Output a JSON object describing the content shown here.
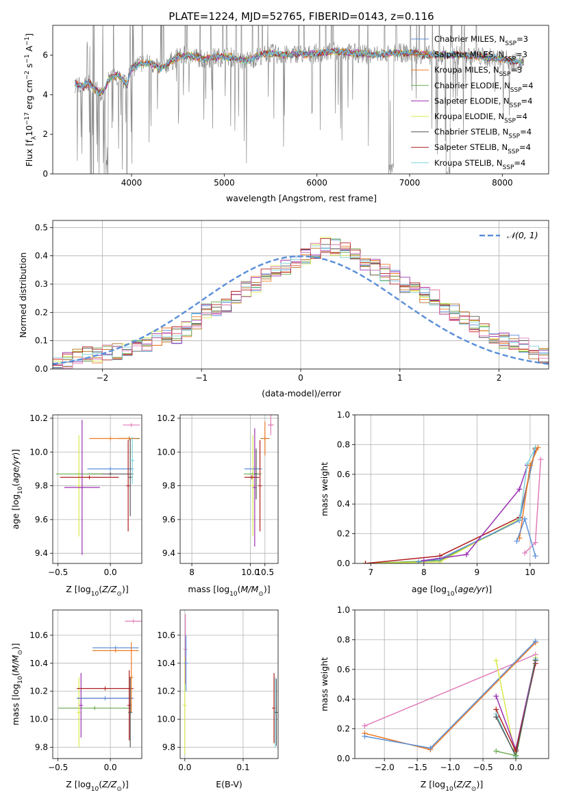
{
  "title": "PLATE=1224, MJD=52765, FIBERID=0143, z=0.116",
  "colors": {
    "Chabrier MILES": "#5b8fd9",
    "Salpeter MILES": "#b06a1a",
    "Kroupa MILES": "#ee7a23",
    "Chabrier ELODIE": "#6aa84f",
    "Salpeter ELODIE": "#9a2fb0",
    "Kroupa ELODIE": "#d8e84a",
    "Chabrier STELIB": "#555555",
    "Salpeter STELIB": "#b01c1c",
    "Kroupa STELIB": "#7fd4dc",
    "pink": "#e07cb8",
    "data": "#888888",
    "gaussian": "#5b8fd9"
  },
  "chart_data": [
    {
      "id": "spectrum",
      "type": "line",
      "title": "PLATE=1224, MJD=52765, FIBERID=0143, z=0.116",
      "xlabel": "wavelength [Angstrom, rest frame]",
      "ylabel": "Flux [f_λ 10^-17 erg cm^-2 s^-1 A^-1]",
      "xlim": [
        3150,
        8500
      ],
      "ylim": [
        0,
        7.5
      ],
      "xticks": [
        "4000",
        "5000",
        "6000",
        "7000",
        "8000"
      ],
      "yticks": [
        "0",
        "2",
        "4",
        "6"
      ],
      "grid": false,
      "legend_position": "right",
      "legend": [
        {
          "text": "Chabrier MILES, N_SSP=3",
          "series": "Chabrier MILES"
        },
        {
          "text": "Salpeter MILES, N_SSP=3",
          "series": "Salpeter MILES"
        },
        {
          "text": "Kroupa MILES, N_SSP=3",
          "series": "Kroupa MILES"
        },
        {
          "text": "Chabrier ELODIE, N_SSP=4",
          "series": "Chabrier ELODIE"
        },
        {
          "text": "Salpeter ELODIE, N_SSP=4",
          "series": "Salpeter ELODIE"
        },
        {
          "text": "Kroupa ELODIE, N_SSP=4",
          "series": "Kroupa ELODIE"
        },
        {
          "text": "Chabrier STELIB, N_SSP=4",
          "series": "Chabrier STELIB"
        },
        {
          "text": "Salpeter STELIB, N_SSP=4",
          "series": "Salpeter STELIB"
        },
        {
          "text": "Kroupa STELIB, N_SSP=4",
          "series": "Kroupa STELIB"
        }
      ],
      "continuum": {
        "x": [
          3380,
          3420,
          3480,
          3540,
          3600,
          3650,
          3700,
          3750,
          3800,
          3850,
          3900,
          3950,
          4000,
          4100,
          4200,
          4300,
          4400,
          4500,
          4600,
          4700,
          4800,
          4900,
          5000,
          5100,
          5200,
          5300,
          5400,
          5500,
          5600,
          5700,
          5800,
          5900,
          6000,
          6200,
          6400,
          6600,
          6800,
          7000,
          7200,
          7400,
          7600,
          7800,
          8000,
          8200
        ],
        "y": [
          4.6,
          4.5,
          4.4,
          4.6,
          4.3,
          4.1,
          4.2,
          4.7,
          4.9,
          5.0,
          4.8,
          4.5,
          5.3,
          5.6,
          5.6,
          5.3,
          5.6,
          5.9,
          6.0,
          5.9,
          5.8,
          5.9,
          5.9,
          5.9,
          5.7,
          5.8,
          6.0,
          6.1,
          6.0,
          6.0,
          6.1,
          6.0,
          6.1,
          6.2,
          6.1,
          6.0,
          6.1,
          6.1,
          6.0,
          6.0,
          6.0,
          5.9,
          5.8,
          5.6
        ]
      }
    },
    {
      "id": "residuals",
      "type": "step",
      "xlabel": "(data-model)/error",
      "ylabel": "Normed distribution",
      "xlim": [
        -2.5,
        2.5
      ],
      "ylim": [
        0,
        0.525
      ],
      "xticks": [
        "−2",
        "−1",
        "0",
        "1",
        "2"
      ],
      "yticks": [
        "0.0",
        "0.1",
        "0.2",
        "0.3",
        "0.4",
        "0.5"
      ],
      "grid": true,
      "legend_position": "top-right",
      "legend": [
        {
          "text": "𝒩(0, 1)",
          "series": "gaussian"
        }
      ],
      "bin_edges_from": -2.5,
      "bin_width": 0.1,
      "histogram_shape": [
        0.02,
        0.03,
        0.04,
        0.05,
        0.05,
        0.06,
        0.06,
        0.07,
        0.08,
        0.09,
        0.11,
        0.12,
        0.12,
        0.14,
        0.17,
        0.2,
        0.21,
        0.23,
        0.26,
        0.28,
        0.3,
        0.33,
        0.34,
        0.36,
        0.37,
        0.4,
        0.42,
        0.44,
        0.43,
        0.42,
        0.4,
        0.38,
        0.36,
        0.34,
        0.32,
        0.3,
        0.28,
        0.26,
        0.25,
        0.22,
        0.2,
        0.18,
        0.16,
        0.14,
        0.12,
        0.1,
        0.09,
        0.08,
        0.06,
        0.05
      ]
    },
    {
      "id": "age-vs-Z",
      "type": "errorbar",
      "xlabel": "Z [log10(Z/Z⊙)]",
      "ylabel": "age  [log10(age/yr)]",
      "xlim": [
        -0.55,
        0.3
      ],
      "ylim": [
        9.34,
        10.22
      ],
      "xticks": [
        "−0.5",
        "0.0"
      ],
      "yticks": [
        "9.4",
        "9.6",
        "9.8",
        "10.0",
        "10.2"
      ],
      "grid": true,
      "points": [
        {
          "series": "Chabrier MILES",
          "x": 0.0,
          "xerr": 0.22,
          "y": 9.9,
          "yerr": 0.0
        },
        {
          "series": "Chabrier STELIB",
          "x": 0.0,
          "xerr": 0.22,
          "y": 9.87,
          "yerr": 0.0
        },
        {
          "series": "Chabrier ELODIE",
          "x": -0.3,
          "xerr": 0.22,
          "y": 9.87,
          "yerr": 0.0
        },
        {
          "series": "Kroupa ELODIE",
          "x": -0.3,
          "xerr": 0.0,
          "y": 9.8,
          "yerr": 0.3
        },
        {
          "series": "Salpeter ELODIE",
          "x": -0.27,
          "xerr": 0.17,
          "y": 9.79,
          "yerr": 0.4
        },
        {
          "series": "Salpeter STELIB",
          "x": 0.17,
          "xerr": 0.0,
          "y": 9.8,
          "yerr": 0.27
        },
        {
          "series": "Chabrier STELIB",
          "x": 0.19,
          "xerr": 0.0,
          "y": 9.85,
          "yerr": 0.23
        },
        {
          "series": "Salpeter MILES",
          "x": 0.18,
          "xerr": 0.1,
          "y": 10.08,
          "yerr": 0.0
        },
        {
          "series": "Kroupa MILES",
          "x": 0.0,
          "xerr": 0.2,
          "y": 10.08,
          "yerr": 0.0
        },
        {
          "series": "pink",
          "x": 0.2,
          "xerr": 0.08,
          "y": 10.16,
          "yerr": 0.0
        },
        {
          "series": "Salpeter STELIB",
          "x": -0.2,
          "xerr": 0.28,
          "y": 9.85,
          "yerr": 0.0
        },
        {
          "series": "Kroupa STELIB",
          "x": 0.21,
          "xerr": 0.0,
          "y": 9.95,
          "yerr": 0.14
        }
      ]
    },
    {
      "id": "age-vs-mass",
      "type": "errorbar",
      "xlabel": "mass [log10(M/M⊙)]",
      "ylabel": "",
      "xlim": [
        7.6,
        10.95
      ],
      "ylim": [
        9.34,
        10.22
      ],
      "xticks": [
        "8",
        "10.0",
        "10.5"
      ],
      "yticks": [
        "9.4",
        "9.6",
        "9.8",
        "10.0",
        "10.2"
      ],
      "grid": true,
      "points": [
        {
          "series": "Chabrier MILES",
          "x": 10.1,
          "xerr": 0.3,
          "y": 9.9,
          "yerr": 0.0
        },
        {
          "series": "Chabrier ELODIE",
          "x": 10.08,
          "xerr": 0.3,
          "y": 9.87,
          "yerr": 0.0
        },
        {
          "series": "Kroupa ELODIE",
          "x": 10.09,
          "xerr": 0.0,
          "y": 9.8,
          "yerr": 0.3
        },
        {
          "series": "Salpeter ELODIE",
          "x": 10.15,
          "xerr": 0.0,
          "y": 9.79,
          "yerr": 0.35
        },
        {
          "series": "Salpeter STELIB",
          "x": 10.05,
          "xerr": 0.25,
          "y": 9.85,
          "yerr": 0.0
        },
        {
          "series": "Chabrier STELIB",
          "x": 10.2,
          "xerr": 0.0,
          "y": 9.87,
          "yerr": 0.15
        },
        {
          "series": "Salpeter STELIB",
          "x": 10.33,
          "xerr": 0.0,
          "y": 9.8,
          "yerr": 0.27
        },
        {
          "series": "Salpeter MILES",
          "x": 10.5,
          "xerr": 0.15,
          "y": 10.08,
          "yerr": 0.0
        },
        {
          "series": "Kroupa MILES",
          "x": 10.5,
          "xerr": 0.0,
          "y": 10.08,
          "yerr": 0.1
        },
        {
          "series": "pink",
          "x": 10.7,
          "xerr": 0.1,
          "y": 10.16,
          "yerr": 0.06
        }
      ]
    },
    {
      "id": "massweight-vs-age",
      "type": "line",
      "xlabel": "age  [log10(age/yr)]",
      "ylabel": "mass weight",
      "xlim": [
        6.7,
        10.35
      ],
      "ylim": [
        0,
        1.0
      ],
      "xticks": [
        "7",
        "8",
        "9",
        "10"
      ],
      "yticks": [
        "0.0",
        "0.2",
        "0.4",
        "0.6",
        "0.8",
        "1.0"
      ],
      "grid": true,
      "series": [
        {
          "series": "Chabrier ELODIE",
          "x": [
            6.9,
            8.3,
            9.8,
            10.1
          ],
          "y": [
            0.0,
            0.02,
            0.29,
            0.77
          ]
        },
        {
          "series": "Kroupa ELODIE",
          "x": [
            6.9,
            8.3,
            9.8,
            10.1
          ],
          "y": [
            0.0,
            0.01,
            0.3,
            0.78
          ]
        },
        {
          "series": "Salpeter STELIB",
          "x": [
            6.9,
            8.3,
            9.8,
            10.1
          ],
          "y": [
            0.0,
            0.05,
            0.31,
            0.77
          ]
        },
        {
          "series": "Chabrier MILES",
          "x": [
            7.9,
            8.3,
            9.8,
            10.1
          ],
          "y": [
            0.01,
            0.03,
            0.29,
            0.78
          ]
        },
        {
          "series": "Salpeter ELODIE",
          "x": [
            8.0,
            8.8,
            9.8,
            9.95
          ],
          "y": [
            0.02,
            0.06,
            0.5,
            0.66
          ]
        },
        {
          "series": "Kroupa STELIB",
          "x": [
            9.8,
            9.95,
            10.1
          ],
          "y": [
            0.3,
            0.67,
            0.78
          ]
        },
        {
          "series": "Kroupa MILES",
          "x": [
            9.8,
            10.0,
            10.15
          ],
          "y": [
            0.17,
            0.66,
            0.78
          ]
        },
        {
          "series": "pink",
          "x": [
            9.9,
            10.1,
            10.2
          ],
          "y": [
            0.07,
            0.14,
            0.7
          ]
        },
        {
          "series": "Chabrier MILES",
          "x": [
            9.75,
            9.9,
            10.1
          ],
          "y": [
            0.15,
            0.3,
            0.05
          ]
        }
      ]
    },
    {
      "id": "mass-vs-Z",
      "type": "errorbar",
      "xlabel": "Z [log10(Z/Z⊙)]",
      "ylabel": "mass [log10(M/M⊙)]",
      "xlim": [
        -0.55,
        0.3
      ],
      "ylim": [
        9.72,
        10.78
      ],
      "xticks": [
        "−0.5",
        "0.0"
      ],
      "yticks": [
        "9.8",
        "10.0",
        "10.2",
        "10.4",
        "10.6"
      ],
      "grid": true,
      "points": [
        {
          "series": "Chabrier ELODIE",
          "x": -0.15,
          "xerr": 0.35,
          "y": 10.08,
          "yerr": 0.0
        },
        {
          "series": "Kroupa ELODIE",
          "x": -0.3,
          "xerr": 0.0,
          "y": 10.05,
          "yerr": 0.25
        },
        {
          "series": "Salpeter ELODIE",
          "x": -0.05,
          "xerr": 0.27,
          "y": 10.15,
          "yerr": 0.0
        },
        {
          "series": "Salpeter ELODIE",
          "x": -0.28,
          "xerr": 0.0,
          "y": 10.1,
          "yerr": 0.23
        },
        {
          "series": "Salpeter STELIB",
          "x": -0.05,
          "xerr": 0.27,
          "y": 10.22,
          "yerr": 0.0
        },
        {
          "series": "Chabrier MILES",
          "x": -0.05,
          "xerr": 0.27,
          "y": 10.15,
          "yerr": 0.0
        },
        {
          "series": "Chabrier MILES",
          "x": 0.05,
          "xerr": 0.22,
          "y": 10.51,
          "yerr": 0.0
        },
        {
          "series": "Kroupa MILES",
          "x": 0.05,
          "xerr": 0.22,
          "y": 10.49,
          "yerr": 0.0
        },
        {
          "series": "Kroupa MILES",
          "x": 0.2,
          "xerr": 0.0,
          "y": 10.3,
          "yerr": 0.25
        },
        {
          "series": "Salpeter STELIB",
          "x": 0.18,
          "xerr": 0.0,
          "y": 10.1,
          "yerr": 0.25
        },
        {
          "series": "Chabrier STELIB",
          "x": 0.19,
          "xerr": 0.0,
          "y": 10.05,
          "yerr": 0.25
        },
        {
          "series": "pink",
          "x": 0.22,
          "xerr": 0.08,
          "y": 10.7,
          "yerr": 0.0
        }
      ]
    },
    {
      "id": "mass-vs-EBV",
      "type": "errorbar",
      "xlabel": "E(B-V)",
      "ylabel": "",
      "xlim": [
        -0.008,
        0.16
      ],
      "ylim": [
        9.72,
        10.78
      ],
      "xticks": [
        "0.0",
        "0.1"
      ],
      "yticks": [
        "9.8",
        "10.0",
        "10.2",
        "10.4",
        "10.6"
      ],
      "grid": true,
      "points": [
        {
          "series": "Kroupa ELODIE",
          "x": 0.0,
          "xerr": 0.0,
          "y": 10.1,
          "yerr": 0.35
        },
        {
          "series": "pink",
          "x": 0.001,
          "xerr": 0.0,
          "y": 10.5,
          "yerr": 0.25
        },
        {
          "series": "Chabrier MILES",
          "x": 0.002,
          "xerr": 0.0,
          "y": 10.4,
          "yerr": 0.2
        },
        {
          "series": "Salpeter STELIB",
          "x": 0.153,
          "xerr": 0.0,
          "y": 10.08,
          "yerr": 0.25
        },
        {
          "series": "Kroupa STELIB",
          "x": 0.155,
          "xerr": 0.0,
          "y": 10.05,
          "yerr": 0.25
        },
        {
          "series": "Chabrier STELIB",
          "x": 0.157,
          "xerr": 0.0,
          "y": 10.05,
          "yerr": 0.24
        }
      ]
    },
    {
      "id": "massweight-vs-Z",
      "type": "line",
      "xlabel": "Z [log10(Z/Z⊙)]",
      "ylabel": "mass weight",
      "xlim": [
        -2.45,
        0.5
      ],
      "ylim": [
        0,
        1.0
      ],
      "xticks": [
        "−2.0",
        "−1.5",
        "−1.0",
        "−0.5",
        "0.0"
      ],
      "yticks": [
        "0.0",
        "0.2",
        "0.4",
        "0.6",
        "0.8",
        "1.0"
      ],
      "grid": true,
      "series": [
        {
          "series": "pink",
          "x": [
            -2.3,
            0.3
          ],
          "y": [
            0.22,
            0.7
          ]
        },
        {
          "series": "Kroupa MILES",
          "x": [
            -2.3,
            -1.3,
            0.3
          ],
          "y": [
            0.17,
            0.06,
            0.78
          ]
        },
        {
          "series": "Chabrier MILES",
          "x": [
            -2.3,
            -1.3,
            0.3
          ],
          "y": [
            0.15,
            0.07,
            0.79
          ]
        },
        {
          "series": "Kroupa ELODIE",
          "x": [
            -0.3,
            0.0,
            0.3
          ],
          "y": [
            0.66,
            0.0,
            0.68
          ]
        },
        {
          "series": "Salpeter ELODIE",
          "x": [
            -0.3,
            0.0,
            0.3
          ],
          "y": [
            0.42,
            0.06,
            0.67
          ]
        },
        {
          "series": "Salpeter STELIB",
          "x": [
            -0.3,
            0.0,
            0.3
          ],
          "y": [
            0.33,
            0.05,
            0.64
          ]
        },
        {
          "series": "Kroupa STELIB",
          "x": [
            -0.3,
            0.0,
            0.3
          ],
          "y": [
            0.3,
            0.01,
            0.67
          ]
        },
        {
          "series": "Chabrier STELIB",
          "x": [
            -0.3,
            0.0,
            0.3
          ],
          "y": [
            0.28,
            0.02,
            0.66
          ]
        },
        {
          "series": "Chabrier ELODIE",
          "x": [
            -0.3,
            0.0
          ],
          "y": [
            0.05,
            0.02
          ]
        }
      ]
    }
  ]
}
